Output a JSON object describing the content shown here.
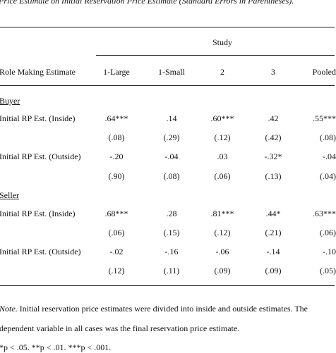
{
  "caption": "Price Estimate on Initial Reservation Price Estimate (Standard Errors in Parentheses).",
  "spanner": "Study",
  "header": {
    "row_label": "Role Making Estimate",
    "columns": [
      "1-Large",
      "1-Small",
      "2",
      "3",
      "Pooled"
    ]
  },
  "groups": [
    {
      "name": "Buyer",
      "rows": [
        {
          "label": "Initial RP Est. (Inside)",
          "estimates": [
            ".64***",
            ".14",
            ".60***",
            ".42",
            ".55***"
          ],
          "errors": [
            "(.08)",
            "(.29)",
            "(.12)",
            "(.42)",
            "(.08)"
          ]
        },
        {
          "label": "Initial RP Est. (Outside)",
          "estimates": [
            "-.20",
            "-.04",
            ".03",
            "-.32*",
            "-.04"
          ],
          "errors": [
            "(.90)",
            "(.08)",
            "(.06)",
            "(.13)",
            "(.04)"
          ]
        }
      ]
    },
    {
      "name": "Seller",
      "rows": [
        {
          "label": "Initial RP Est. (Inside)",
          "estimates": [
            ".68***",
            ".28",
            ".81***",
            ".44*",
            ".63***"
          ],
          "errors": [
            "(.06)",
            "(.15)",
            "(.12)",
            "(.21)",
            "(.06)"
          ]
        },
        {
          "label": "Initial RP Est. (Outside)",
          "estimates": [
            "-.02",
            "-.16",
            "-.06",
            "-.14",
            "-.10"
          ],
          "errors": [
            "(.12)",
            "(.11)",
            "(.09)",
            "(.09)",
            "(.05)"
          ]
        }
      ]
    }
  ],
  "note": {
    "label": "Note",
    "line1": ".  Initial reservation price estimates were divided into inside and outside estimates. The",
    "line2": "dependent variable in all cases was the final reservation price estimate.",
    "sig": "*p < .05.  **p < .01. ***p < .001."
  }
}
